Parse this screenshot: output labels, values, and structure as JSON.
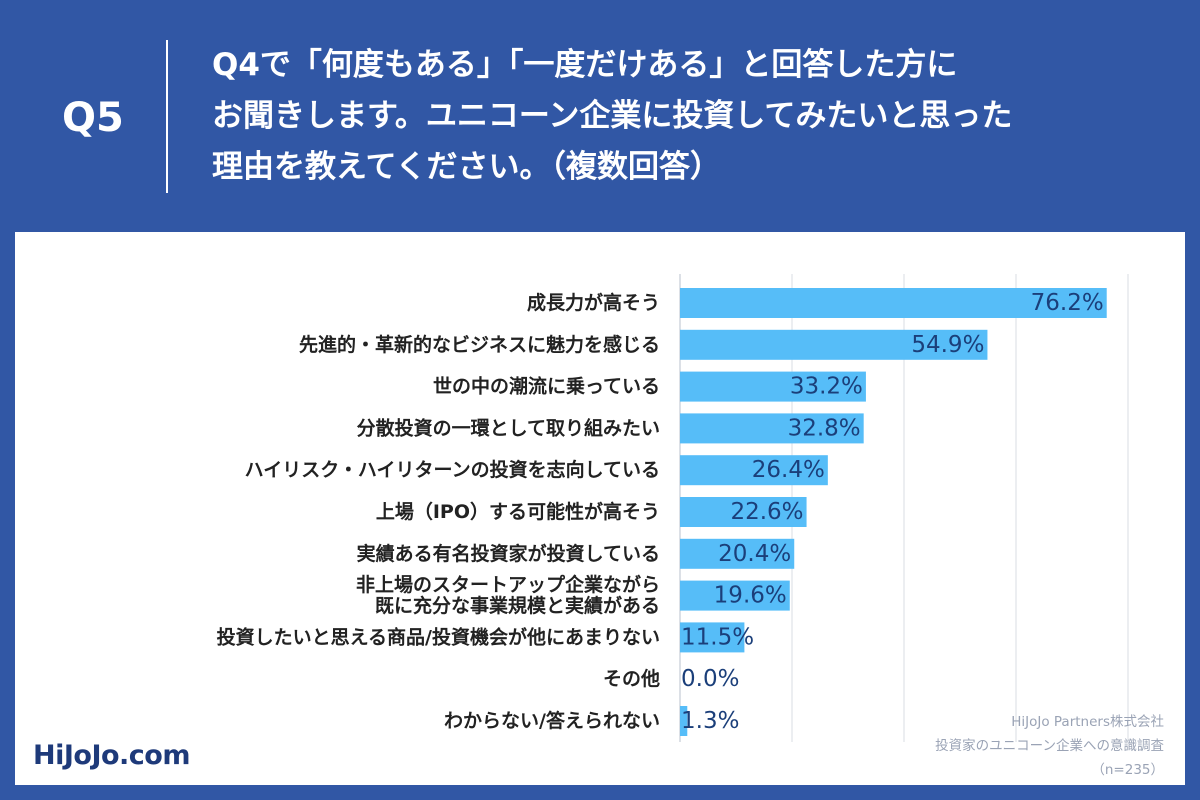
{
  "header": {
    "qnum": "Q5",
    "lines": [
      "Q4で「何度もある」「一度だけある」と回答した方に",
      "お聞きします。ユニコーン企業に投資してみたいと思った",
      "理由を教えてください。（複数回答）"
    ]
  },
  "logo": "HiJoJo.com",
  "source": {
    "company": "HiJoJo Partners株式会社",
    "survey": "投資家のユニコーン企業への意識調査",
    "n": "（n=235）"
  },
  "colors": {
    "background": "#3157a5",
    "bar": "#56bdf8",
    "value_text": "#1b3f7a",
    "grid": "#d9dde3"
  },
  "chart_data": {
    "type": "bar",
    "orientation": "horizontal",
    "unit": "%",
    "xlim": [
      0,
      100
    ],
    "grid": true,
    "categories": [
      [
        "成長力が高そう"
      ],
      [
        "先進的・革新的なビジネスに魅力を感じる"
      ],
      [
        "世の中の潮流に乗っている"
      ],
      [
        "分散投資の一環として取り組みたい"
      ],
      [
        "ハイリスク・ハイリターンの投資を志向している"
      ],
      [
        "上場（IPO）する可能性が高そう"
      ],
      [
        "実績ある有名投資家が投資している"
      ],
      [
        "非上場のスタートアップ企業ながら",
        "既に充分な事業規模と実績がある"
      ],
      [
        "投資したいと思える商品/投資機会が他にあまりない"
      ],
      [
        "その他"
      ],
      [
        "わからない/答えられない"
      ]
    ],
    "values": [
      76.2,
      54.9,
      33.2,
      32.8,
      26.4,
      22.6,
      20.4,
      19.6,
      11.5,
      0.0,
      1.3
    ],
    "labels": [
      "76.2%",
      "54.9%",
      "33.2%",
      "32.8%",
      "26.4%",
      "22.6%",
      "20.4%",
      "19.6%",
      "11.5%",
      "0.0%",
      "1.3%"
    ]
  }
}
